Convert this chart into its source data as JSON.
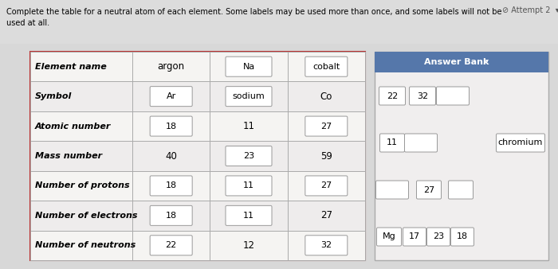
{
  "title_line1": "Complete the table for a neutral atom of each element. Some labels may be used more than once, and some labels will not be",
  "title_line2": "used at all.",
  "attempt_text": "⊘ Attempt 2  ▾",
  "page_bg": "#c8c8c8",
  "content_bg": "#f0eeee",
  "table_border_color": "#bb3333",
  "table_bg": "#f5f4f4",
  "row_alt_bg": "#ebebeb",
  "grid_color": "#aaaaaa",
  "row_labels": [
    "Element name",
    "Symbol",
    "Atomic number",
    "Mass number",
    "Number of protons",
    "Number of electrons",
    "Number of neutrons"
  ],
  "col1_values": [
    "argon",
    "Ar",
    "18",
    "40",
    "18",
    "18",
    "22"
  ],
  "col2_values": [
    "Na",
    "sodium",
    "11",
    "23",
    "11",
    "11",
    "12"
  ],
  "col3_values": [
    "cobalt",
    "Co",
    "27",
    "59",
    "27",
    "27",
    "32"
  ],
  "col1_boxed": [
    false,
    true,
    true,
    false,
    true,
    true,
    true
  ],
  "col2_boxed": [
    true,
    true,
    false,
    true,
    true,
    true,
    false
  ],
  "col3_boxed": [
    true,
    false,
    true,
    false,
    true,
    false,
    true
  ],
  "answer_bank_title": "Answer Bank",
  "answer_bank_header_color": "#5577aa",
  "ab_row0": [
    "22",
    "32",
    ""
  ],
  "ab_row1": [
    "11",
    "",
    "chromium"
  ],
  "ab_row2": [
    "",
    "27",
    ""
  ],
  "ab_row3": [
    "Mg",
    "17",
    "23",
    "18"
  ]
}
